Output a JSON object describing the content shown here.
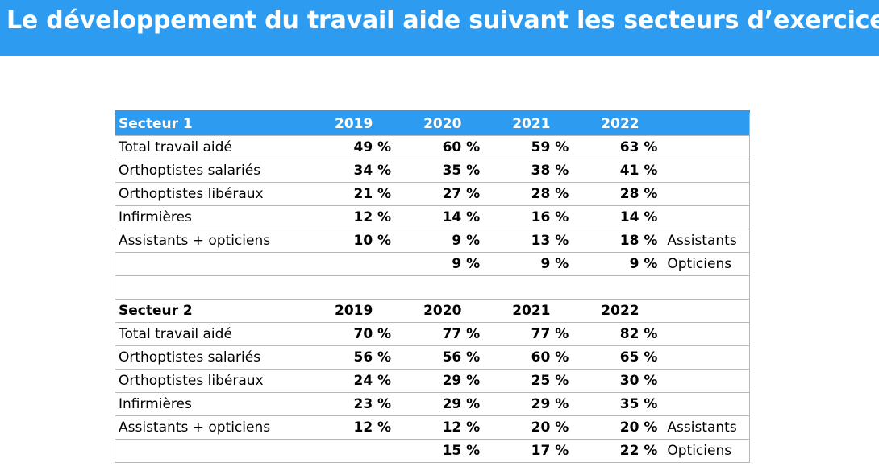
{
  "title": "Le développement du travail aide suivant les secteurs d’exercice",
  "colors": {
    "accent": "#2d9cf0"
  },
  "sections": [
    {
      "header": [
        "Secteur 1",
        "2019",
        "2020",
        "2021",
        "2022",
        ""
      ],
      "rows": [
        [
          "Total travail aidé",
          "49 %",
          "60 %",
          "59 %",
          "63 %",
          ""
        ],
        [
          "Orthoptistes salariés",
          "34 %",
          "35 %",
          "38 %",
          "41 %",
          ""
        ],
        [
          "Orthoptistes libéraux",
          "21 %",
          "27 %",
          "28 %",
          "28 %",
          ""
        ],
        [
          "Infirmières",
          "12 %",
          "14 %",
          "16 %",
          "14 %",
          ""
        ],
        [
          "Assistants + opticiens",
          "10 %",
          "9 %",
          "13 %",
          "18 %",
          "Assistants"
        ],
        [
          "",
          "",
          "9 %",
          "9 %",
          "9 %",
          "Opticiens"
        ]
      ]
    },
    {
      "header": [
        "Secteur 2",
        "2019",
        "2020",
        "2021",
        "2022",
        ""
      ],
      "rows": [
        [
          "Total travail aidé",
          "70 %",
          "77 %",
          "77 %",
          "82 %",
          ""
        ],
        [
          "Orthoptistes salariés",
          "56 %",
          "56 %",
          "60 %",
          "65 %",
          ""
        ],
        [
          "Orthoptistes libéraux",
          "24 %",
          "29 %",
          "25 %",
          "30 %",
          ""
        ],
        [
          "Infirmières",
          "23 %",
          "29 %",
          "29 %",
          "35 %",
          ""
        ],
        [
          "Assistants + opticiens",
          "12 %",
          "12 %",
          "20 %",
          "20 %",
          "Assistants"
        ],
        [
          "",
          "",
          "15 %",
          "17 %",
          "22 %",
          "Opticiens"
        ]
      ]
    }
  ]
}
